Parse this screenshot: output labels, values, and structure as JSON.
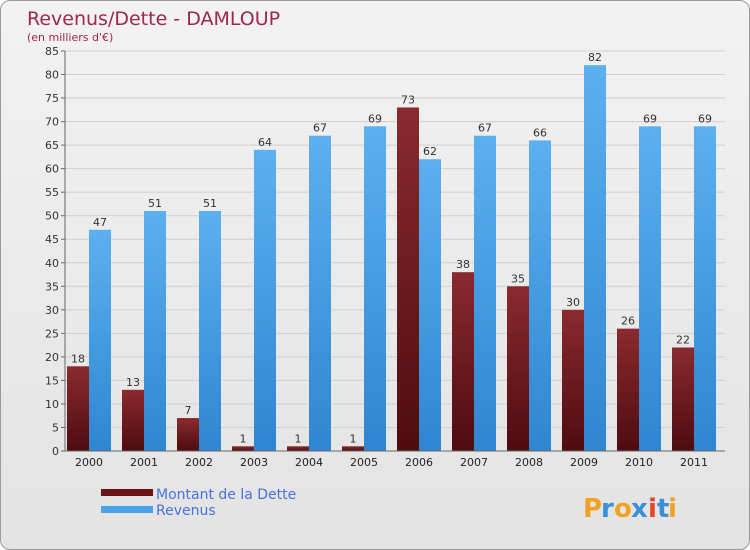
{
  "chart_data": {
    "type": "bar",
    "title": "Revenus/Dette - DAMLOUP",
    "subtitle": "(en milliers d'€)",
    "categories": [
      "2000",
      "2001",
      "2002",
      "2003",
      "2004",
      "2005",
      "2006",
      "2007",
      "2008",
      "2009",
      "2010",
      "2011"
    ],
    "series": [
      {
        "name": "Montant de la Dette",
        "values": [
          18,
          13,
          7,
          1,
          1,
          1,
          73,
          38,
          35,
          30,
          26,
          22
        ],
        "color": "#7a1a1e"
      },
      {
        "name": "Revenus",
        "values": [
          47,
          51,
          51,
          64,
          67,
          69,
          62,
          67,
          66,
          82,
          69,
          69
        ],
        "color": "#4aa3ea"
      }
    ],
    "ylim": [
      0,
      85
    ],
    "yticks": [
      0,
      5,
      10,
      15,
      20,
      25,
      30,
      35,
      40,
      45,
      50,
      55,
      60,
      65,
      70,
      75,
      80,
      85
    ],
    "grid": "horizontal",
    "legend": "bottom-left",
    "xlabel": "",
    "ylabel": ""
  },
  "logo": {
    "letters": [
      "P",
      "r",
      "o",
      "x",
      "i",
      "t",
      "i"
    ],
    "colors": [
      "#f4a020",
      "#3b8fd6",
      "#f4a020",
      "#3b8fd6",
      "#e8462a",
      "#3b8fd6",
      "#f4a020"
    ]
  }
}
